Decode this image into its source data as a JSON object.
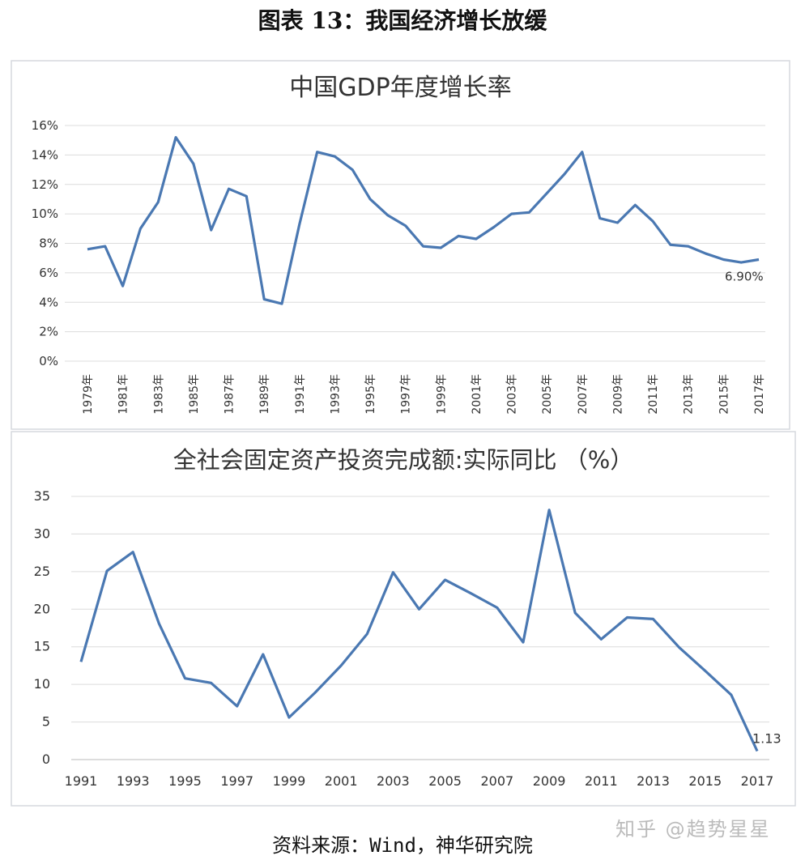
{
  "figure_title": "图表 13：我国经济增长放缓",
  "source": "资料来源：Wind，神华研究院",
  "watermark": "知乎 @趋势星星",
  "line_color": "#4a78b2",
  "chart_data": [
    {
      "type": "line",
      "title": "中国GDP年度增长率",
      "x": [
        1979,
        1980,
        1981,
        1982,
        1983,
        1984,
        1985,
        1986,
        1987,
        1988,
        1989,
        1990,
        1991,
        1992,
        1993,
        1994,
        1995,
        1996,
        1997,
        1998,
        1999,
        2000,
        2001,
        2002,
        2003,
        2004,
        2005,
        2006,
        2007,
        2008,
        2009,
        2010,
        2011,
        2012,
        2013,
        2014,
        2015,
        2016,
        2017
      ],
      "values": [
        7.6,
        7.8,
        5.1,
        9.0,
        10.8,
        15.2,
        13.4,
        8.9,
        11.7,
        11.2,
        4.2,
        3.9,
        9.3,
        14.2,
        13.9,
        13.0,
        11.0,
        9.9,
        9.2,
        7.8,
        7.7,
        8.5,
        8.3,
        9.1,
        10.0,
        10.1,
        11.4,
        12.7,
        14.2,
        9.7,
        9.4,
        10.6,
        9.5,
        7.9,
        7.8,
        7.3,
        6.9,
        6.7,
        6.9
      ],
      "x_tick_labels": [
        "1979年",
        "1981年",
        "1983年",
        "1985年",
        "1987年",
        "1989年",
        "1991年",
        "1993年",
        "1995年",
        "1997年",
        "1999年",
        "2001年",
        "2003年",
        "2005年",
        "2007年",
        "2009年",
        "2011年",
        "2013年",
        "2015年",
        "2017年"
      ],
      "y_tick_labels": [
        "0%",
        "2%",
        "4%",
        "6%",
        "8%",
        "10%",
        "12%",
        "14%",
        "16%"
      ],
      "ylim": [
        0,
        16
      ],
      "grid": true,
      "annotation": "6.90%"
    },
    {
      "type": "line",
      "title": "全社会固定资产投资完成额:实际同比 （%）",
      "x": [
        1991,
        1992,
        1993,
        1994,
        1995,
        1996,
        1997,
        1998,
        1999,
        2000,
        2001,
        2002,
        2003,
        2004,
        2005,
        2006,
        2007,
        2008,
        2009,
        2010,
        2011,
        2012,
        2013,
        2014,
        2015,
        2016,
        2017
      ],
      "values": [
        13.0,
        25.1,
        27.6,
        18.1,
        10.8,
        10.2,
        7.1,
        14.0,
        5.6,
        8.9,
        12.5,
        16.7,
        24.9,
        20.0,
        23.9,
        22.1,
        20.2,
        15.6,
        33.2,
        19.5,
        16.0,
        18.9,
        18.7,
        14.9,
        11.8,
        8.6,
        1.13
      ],
      "x_tick_labels": [
        "1991",
        "1993",
        "1995",
        "1997",
        "1999",
        "2001",
        "2003",
        "2005",
        "2007",
        "2009",
        "2011",
        "2013",
        "2015",
        "2017"
      ],
      "y_tick_labels": [
        "0",
        "5",
        "10",
        "15",
        "20",
        "25",
        "30",
        "35"
      ],
      "ylim": [
        0,
        35
      ],
      "grid": true,
      "annotation": "1.13"
    }
  ]
}
